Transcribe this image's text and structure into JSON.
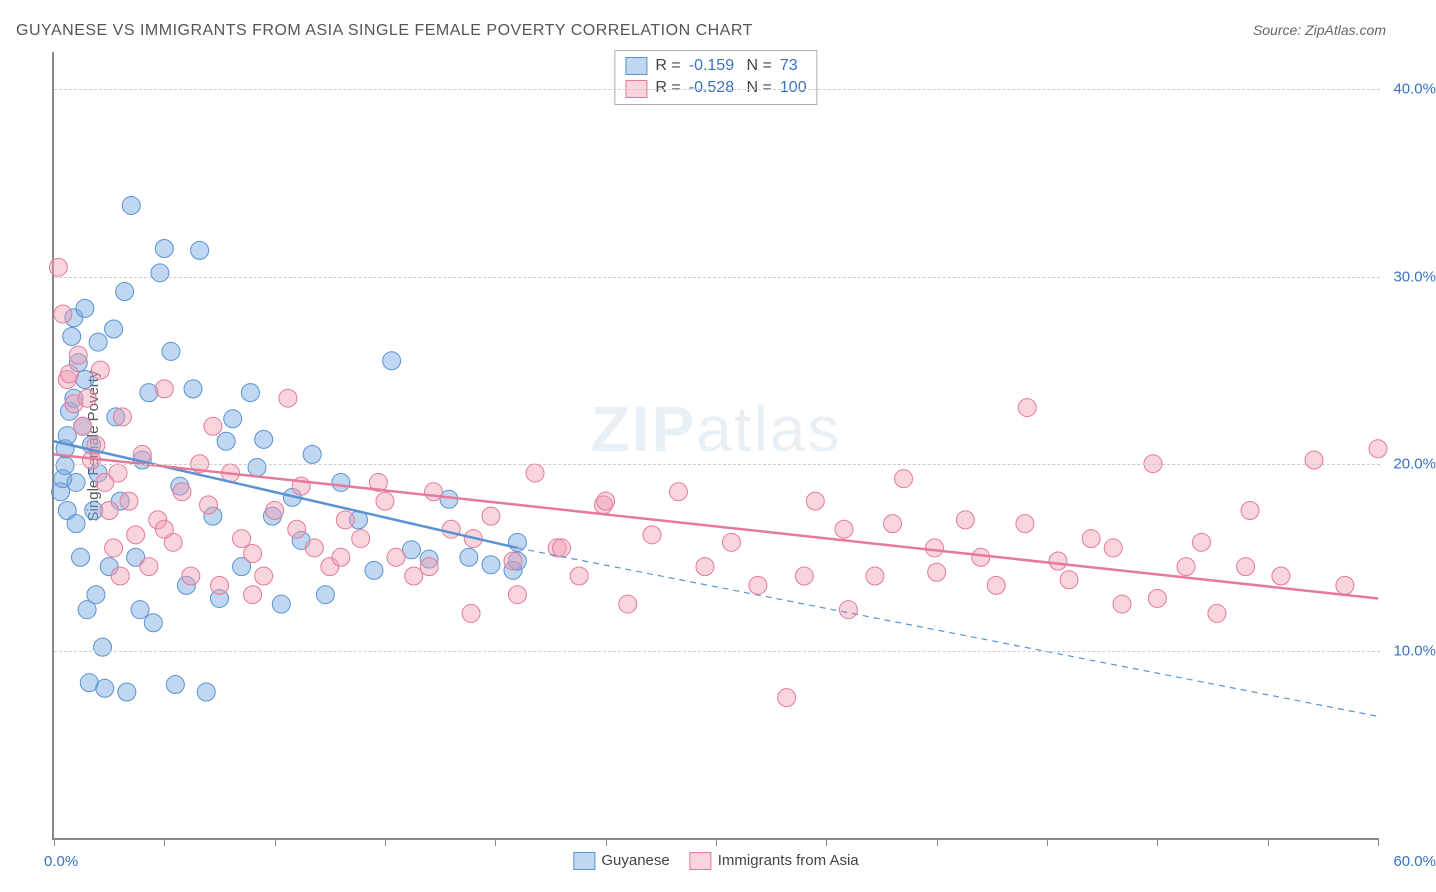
{
  "title": "GUYANESE VS IMMIGRANTS FROM ASIA SINGLE FEMALE POVERTY CORRELATION CHART",
  "source": "Source: ZipAtlas.com",
  "ylabel": "Single Female Poverty",
  "watermark": {
    "bold": "ZIP",
    "light": "atlas",
    "color": "#5b8fb9"
  },
  "chart": {
    "type": "scatter",
    "xlim": [
      0,
      60
    ],
    "ylim": [
      0,
      42
    ],
    "y_gridlines": [
      10,
      20,
      30,
      40
    ],
    "y_tick_labels": [
      "10.0%",
      "20.0%",
      "30.0%",
      "40.0%"
    ],
    "x_ticks": [
      0,
      5,
      10,
      15,
      20,
      25,
      30,
      35,
      40,
      45,
      50,
      55,
      60
    ],
    "x_tick_label_left": "0.0%",
    "x_tick_label_right": "60.0%",
    "x_tick_label_color": "#3772c4",
    "y_tick_label_color": "#3772c4",
    "grid_color": "#cccccc",
    "border_color": "#888888",
    "point_radius": 9,
    "line_width": 2,
    "series": [
      {
        "name": "Guyanese",
        "fill": "rgba(116,166,223,0.45)",
        "stroke": "#5a93d1",
        "R": "-0.159",
        "N": "73",
        "trend": {
          "x1": 0,
          "y1": 21.2,
          "x2": 21,
          "y2": 15.5,
          "dash_x1": 21,
          "dash_y1": 15.5,
          "dash_x2": 60,
          "dash_y2": 6.5
        },
        "points": [
          [
            0.3,
            18.5
          ],
          [
            0.4,
            19.2
          ],
          [
            0.5,
            19.9
          ],
          [
            0.5,
            20.8
          ],
          [
            0.6,
            17.5
          ],
          [
            0.6,
            21.5
          ],
          [
            0.7,
            22.8
          ],
          [
            0.8,
            26.8
          ],
          [
            0.9,
            27.8
          ],
          [
            0.9,
            23.5
          ],
          [
            1.0,
            19.0
          ],
          [
            1.0,
            16.8
          ],
          [
            1.1,
            25.4
          ],
          [
            1.2,
            15.0
          ],
          [
            1.3,
            22.0
          ],
          [
            1.4,
            28.3
          ],
          [
            1.4,
            24.5
          ],
          [
            1.5,
            12.2
          ],
          [
            1.6,
            8.3
          ],
          [
            1.7,
            21.0
          ],
          [
            1.8,
            17.5
          ],
          [
            1.9,
            13.0
          ],
          [
            2.0,
            26.5
          ],
          [
            2.0,
            19.5
          ],
          [
            2.2,
            10.2
          ],
          [
            2.3,
            8.0
          ],
          [
            2.5,
            14.5
          ],
          [
            2.7,
            27.2
          ],
          [
            2.8,
            22.5
          ],
          [
            3.0,
            18.0
          ],
          [
            3.2,
            29.2
          ],
          [
            3.3,
            7.8
          ],
          [
            3.5,
            33.8
          ],
          [
            3.7,
            15.0
          ],
          [
            3.9,
            12.2
          ],
          [
            4.0,
            20.2
          ],
          [
            4.3,
            23.8
          ],
          [
            4.5,
            11.5
          ],
          [
            4.8,
            30.2
          ],
          [
            5.0,
            31.5
          ],
          [
            5.3,
            26.0
          ],
          [
            5.5,
            8.2
          ],
          [
            5.7,
            18.8
          ],
          [
            6.0,
            13.5
          ],
          [
            6.3,
            24.0
          ],
          [
            6.6,
            31.4
          ],
          [
            6.9,
            7.8
          ],
          [
            7.2,
            17.2
          ],
          [
            7.5,
            12.8
          ],
          [
            7.8,
            21.2
          ],
          [
            8.1,
            22.4
          ],
          [
            8.5,
            14.5
          ],
          [
            8.9,
            23.8
          ],
          [
            9.2,
            19.8
          ],
          [
            9.5,
            21.3
          ],
          [
            9.9,
            17.2
          ],
          [
            10.3,
            12.5
          ],
          [
            10.8,
            18.2
          ],
          [
            11.2,
            15.9
          ],
          [
            11.7,
            20.5
          ],
          [
            12.3,
            13.0
          ],
          [
            13.0,
            19.0
          ],
          [
            13.8,
            17.0
          ],
          [
            14.5,
            14.3
          ],
          [
            15.3,
            25.5
          ],
          [
            16.2,
            15.4
          ],
          [
            17.0,
            14.9
          ],
          [
            17.9,
            18.1
          ],
          [
            18.8,
            15.0
          ],
          [
            19.8,
            14.6
          ],
          [
            20.8,
            14.3
          ],
          [
            21.0,
            14.8
          ],
          [
            21.0,
            15.8
          ]
        ]
      },
      {
        "name": "Immigrants from Asia",
        "fill": "rgba(239,160,180,0.45)",
        "stroke": "#e57a9a",
        "R": "-0.528",
        "N": "100",
        "trend": {
          "x1": 0,
          "y1": 20.5,
          "x2": 60,
          "y2": 12.8
        },
        "points": [
          [
            0.2,
            30.5
          ],
          [
            0.4,
            28.0
          ],
          [
            0.6,
            24.5
          ],
          [
            0.7,
            24.8
          ],
          [
            0.9,
            23.2
          ],
          [
            1.1,
            25.8
          ],
          [
            1.3,
            22.0
          ],
          [
            1.5,
            23.5
          ],
          [
            1.7,
            20.2
          ],
          [
            1.9,
            21.0
          ],
          [
            2.1,
            25.0
          ],
          [
            2.3,
            19.0
          ],
          [
            2.5,
            17.5
          ],
          [
            2.7,
            15.5
          ],
          [
            2.9,
            19.5
          ],
          [
            3.1,
            22.5
          ],
          [
            3.4,
            18.0
          ],
          [
            3.7,
            16.2
          ],
          [
            4.0,
            20.5
          ],
          [
            4.3,
            14.5
          ],
          [
            4.7,
            17.0
          ],
          [
            5.0,
            24.0
          ],
          [
            5.4,
            15.8
          ],
          [
            5.8,
            18.5
          ],
          [
            6.2,
            14.0
          ],
          [
            6.6,
            20.0
          ],
          [
            7.0,
            17.8
          ],
          [
            7.5,
            13.5
          ],
          [
            8.0,
            19.5
          ],
          [
            8.5,
            16.0
          ],
          [
            9.0,
            15.2
          ],
          [
            9.5,
            14.0
          ],
          [
            10.0,
            17.5
          ],
          [
            10.6,
            23.5
          ],
          [
            11.2,
            18.8
          ],
          [
            11.8,
            15.5
          ],
          [
            12.5,
            14.5
          ],
          [
            13.2,
            17.0
          ],
          [
            13.9,
            16.0
          ],
          [
            14.7,
            19.0
          ],
          [
            15.5,
            15.0
          ],
          [
            16.3,
            14.0
          ],
          [
            17.2,
            18.5
          ],
          [
            18.0,
            16.5
          ],
          [
            18.9,
            12.0
          ],
          [
            19.8,
            17.2
          ],
          [
            20.8,
            14.8
          ],
          [
            21.8,
            19.5
          ],
          [
            22.8,
            15.5
          ],
          [
            23.8,
            14.0
          ],
          [
            24.9,
            17.8
          ],
          [
            26.0,
            12.5
          ],
          [
            27.1,
            16.2
          ],
          [
            28.3,
            18.5
          ],
          [
            29.5,
            14.5
          ],
          [
            30.7,
            15.8
          ],
          [
            31.9,
            13.5
          ],
          [
            33.2,
            7.5
          ],
          [
            34.5,
            18.0
          ],
          [
            35.8,
            16.5
          ],
          [
            37.2,
            14.0
          ],
          [
            38.5,
            19.2
          ],
          [
            39.9,
            15.5
          ],
          [
            41.3,
            17.0
          ],
          [
            42.7,
            13.5
          ],
          [
            44.1,
            23.0
          ],
          [
            45.5,
            14.8
          ],
          [
            47.0,
            16.0
          ],
          [
            48.4,
            12.5
          ],
          [
            49.8,
            20.0
          ],
          [
            51.3,
            14.5
          ],
          [
            52.7,
            12.0
          ],
          [
            54.2,
            17.5
          ],
          [
            55.6,
            14.0
          ],
          [
            57.1,
            20.2
          ],
          [
            58.5,
            13.5
          ],
          [
            60.0,
            20.8
          ],
          [
            34.0,
            14.0
          ],
          [
            36.0,
            12.2
          ],
          [
            38.0,
            16.8
          ],
          [
            40.0,
            14.2
          ],
          [
            42.0,
            15.0
          ],
          [
            44.0,
            16.8
          ],
          [
            46.0,
            13.8
          ],
          [
            48.0,
            15.5
          ],
          [
            50.0,
            12.8
          ],
          [
            52.0,
            15.8
          ],
          [
            54.0,
            14.5
          ],
          [
            3.0,
            14.0
          ],
          [
            5.0,
            16.5
          ],
          [
            7.2,
            22.0
          ],
          [
            9.0,
            13.0
          ],
          [
            11.0,
            16.5
          ],
          [
            13.0,
            15.0
          ],
          [
            15.0,
            18.0
          ],
          [
            17.0,
            14.5
          ],
          [
            19.0,
            16.0
          ],
          [
            21.0,
            13.0
          ],
          [
            23.0,
            15.5
          ],
          [
            25.0,
            18.0
          ]
        ]
      }
    ]
  },
  "legend_bottom": [
    "Guyanese",
    "Immigrants from Asia"
  ]
}
